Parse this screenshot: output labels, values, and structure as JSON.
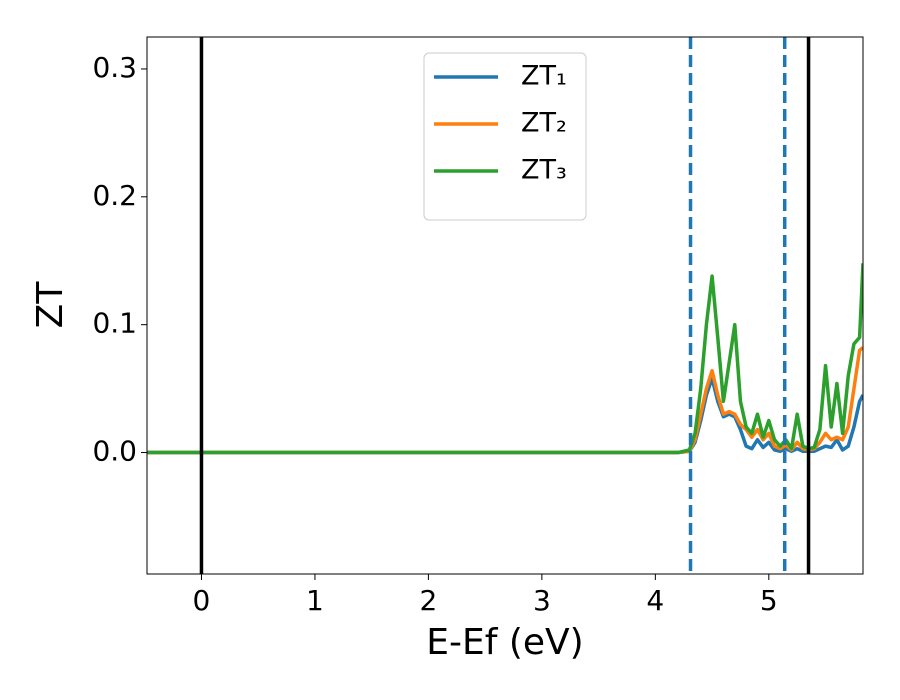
{
  "chart_data": {
    "type": "line",
    "xlabel": "E-Ef (eV)",
    "ylabel": "ZT",
    "x": [
      -0.48,
      4.2,
      4.3,
      4.35,
      4.4,
      4.45,
      4.5,
      4.55,
      4.6,
      4.65,
      4.7,
      4.75,
      4.8,
      4.85,
      4.9,
      4.95,
      5.0,
      5.05,
      5.1,
      5.15,
      5.2,
      5.25,
      5.3,
      5.35,
      5.4,
      5.45,
      5.5,
      5.55,
      5.6,
      5.65,
      5.7,
      5.75,
      5.8,
      5.83
    ],
    "series": [
      {
        "name": "ZT₁",
        "color": "#1f77b4",
        "values": [
          0,
          0,
          0.001,
          0.008,
          0.025,
          0.045,
          0.058,
          0.04,
          0.028,
          0.03,
          0.028,
          0.018,
          0.005,
          0.003,
          0.01,
          0.004,
          0.008,
          0.002,
          0.001,
          0.003,
          0.001,
          0.003,
          0.001,
          0.001,
          0.001,
          0.003,
          0.005,
          0.004,
          0.01,
          0.002,
          0.005,
          0.02,
          0.04,
          0.045
        ]
      },
      {
        "name": "ZT₂",
        "color": "#ff7f0e",
        "values": [
          0,
          0,
          0.001,
          0.01,
          0.03,
          0.05,
          0.064,
          0.045,
          0.03,
          0.032,
          0.03,
          0.022,
          0.018,
          0.012,
          0.018,
          0.01,
          0.015,
          0.005,
          0.003,
          0.006,
          0.002,
          0.008,
          0.003,
          0.002,
          0.003,
          0.008,
          0.015,
          0.01,
          0.012,
          0.01,
          0.02,
          0.05,
          0.08,
          0.082
        ]
      },
      {
        "name": "ZT₃",
        "color": "#2ca02c",
        "values": [
          0,
          0,
          0.002,
          0.015,
          0.05,
          0.1,
          0.138,
          0.09,
          0.04,
          0.07,
          0.1,
          0.04,
          0.02,
          0.015,
          0.03,
          0.012,
          0.025,
          0.01,
          0.005,
          0.01,
          0.003,
          0.03,
          0.005,
          0.003,
          0.004,
          0.018,
          0.068,
          0.02,
          0.054,
          0.015,
          0.06,
          0.085,
          0.09,
          0.148
        ]
      }
    ],
    "vlines": [
      {
        "x": 0,
        "color": "#000000",
        "style": "solid"
      },
      {
        "x": 5.35,
        "color": "#000000",
        "style": "solid"
      },
      {
        "x": 4.31,
        "color": "#1f77b4",
        "style": "dashed"
      },
      {
        "x": 5.14,
        "color": "#1f77b4",
        "style": "dashed"
      }
    ],
    "xlim": [
      -0.48,
      5.83
    ],
    "ylim": [
      -0.095,
      0.325
    ],
    "xticks": [
      0,
      1,
      2,
      3,
      4,
      5
    ],
    "yticks": [
      {
        "value": 0,
        "label": "0.0"
      },
      0.1,
      0.2,
      0.3
    ],
    "legend": "upper center"
  }
}
